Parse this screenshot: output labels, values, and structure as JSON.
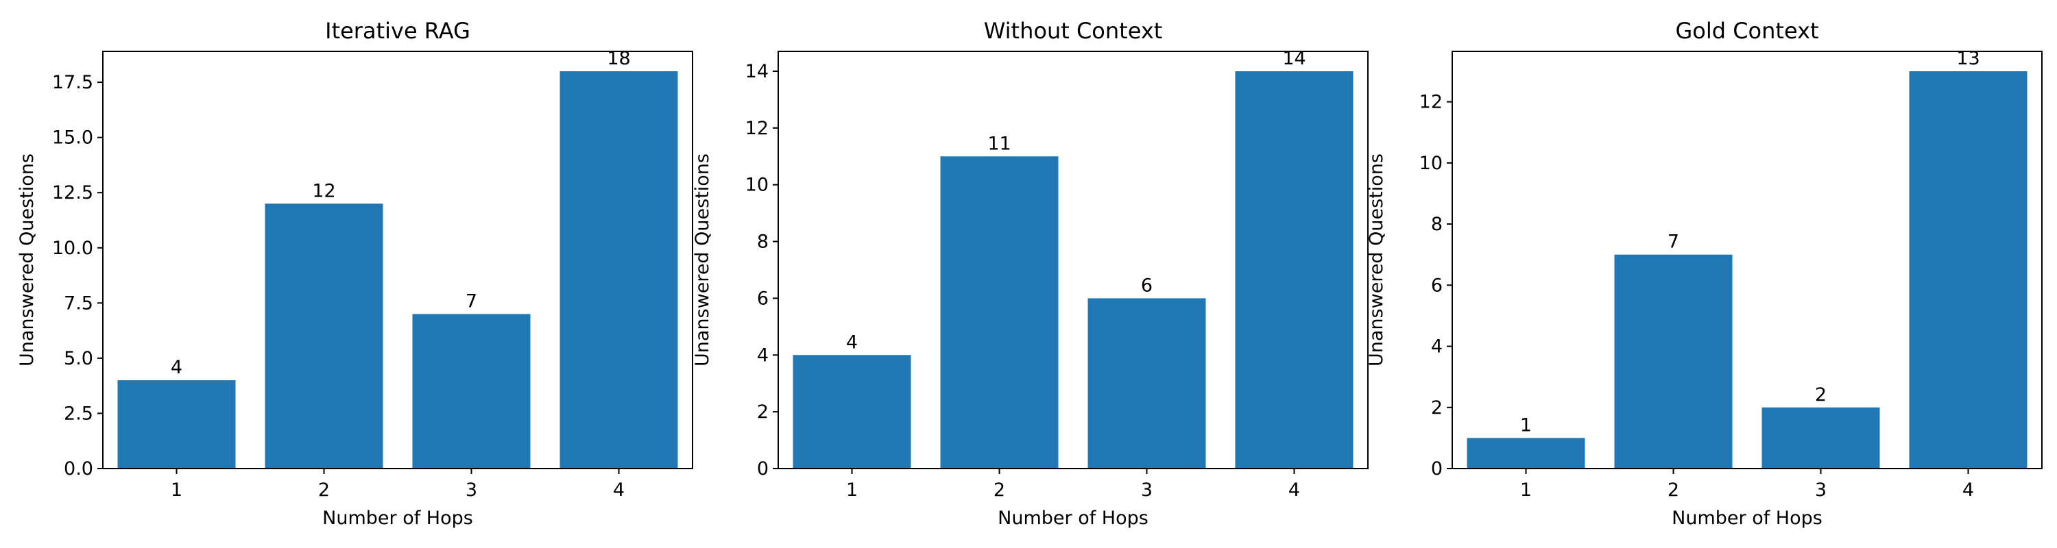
{
  "chart_data": [
    {
      "type": "bar",
      "title": "Iterative RAG",
      "xlabel": "Number of Hops",
      "ylabel": "Unanswered Questions",
      "categories": [
        "1",
        "2",
        "3",
        "4"
      ],
      "values": [
        4,
        12,
        7,
        18
      ],
      "data_labels": [
        "4",
        "12",
        "7",
        "18"
      ],
      "ylim": [
        0,
        18.9
      ],
      "yticks": [
        0,
        2.5,
        5,
        7.5,
        10,
        12.5,
        15,
        17.5
      ],
      "ytick_labels": [
        "0.0",
        "2.5",
        "5.0",
        "7.5",
        "10.0",
        "12.5",
        "15.0",
        "17.5"
      ],
      "color": "#1f77b4",
      "grid": false
    },
    {
      "type": "bar",
      "title": "Without Context",
      "xlabel": "Number of Hops",
      "ylabel": "Unanswered Questions",
      "categories": [
        "1",
        "2",
        "3",
        "4"
      ],
      "values": [
        4,
        11,
        6,
        14
      ],
      "data_labels": [
        "4",
        "11",
        "6",
        "14"
      ],
      "ylim": [
        0,
        14.7
      ],
      "yticks": [
        0,
        2,
        4,
        6,
        8,
        10,
        12,
        14
      ],
      "ytick_labels": [
        "0",
        "2",
        "4",
        "6",
        "8",
        "10",
        "12",
        "14"
      ],
      "color": "#1f77b4",
      "grid": false
    },
    {
      "type": "bar",
      "title": "Gold Context",
      "xlabel": "Number of Hops",
      "ylabel": "Unanswered Questions",
      "categories": [
        "1",
        "2",
        "3",
        "4"
      ],
      "values": [
        1,
        7,
        2,
        13
      ],
      "data_labels": [
        "1",
        "7",
        "2",
        "13"
      ],
      "ylim": [
        0,
        13.65
      ],
      "yticks": [
        0,
        2,
        4,
        6,
        8,
        10,
        12
      ],
      "ytick_labels": [
        "0",
        "2",
        "4",
        "6",
        "8",
        "10",
        "12"
      ],
      "color": "#1f77b4",
      "grid": false
    }
  ]
}
